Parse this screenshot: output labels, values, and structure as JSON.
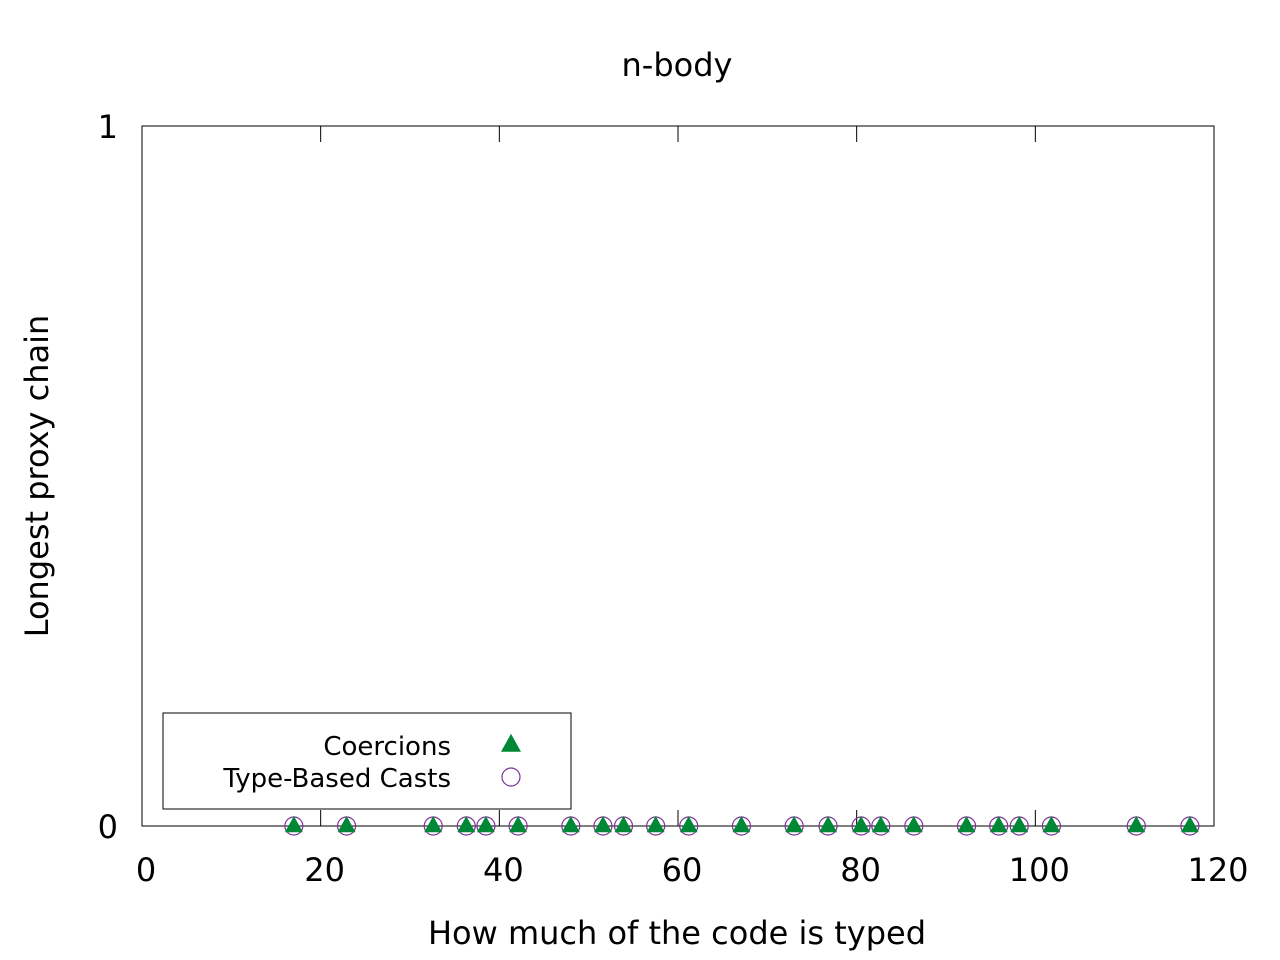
{
  "chart_data": {
    "type": "scatter",
    "title": "n-body",
    "xlabel": "How much of the code is typed",
    "ylabel": "Longest proxy chain",
    "xlim": [
      0,
      120
    ],
    "ylim": [
      0,
      1
    ],
    "x_ticks": [
      0,
      20,
      40,
      60,
      80,
      100,
      120
    ],
    "y_ticks": [
      0,
      1
    ],
    "grid": false,
    "legend_position": "bottom-left",
    "series": [
      {
        "name": "Coercions",
        "marker": "filled-triangle",
        "color": "#008837",
        "x": [
          17.0,
          22.9,
          32.6,
          36.3,
          38.5,
          42.1,
          48.0,
          51.6,
          53.9,
          57.5,
          61.2,
          67.1,
          73.0,
          76.8,
          80.5,
          82.7,
          86.4,
          92.3,
          95.9,
          98.2,
          101.8,
          111.3,
          117.3
        ],
        "y": [
          0,
          0,
          0,
          0,
          0,
          0,
          0,
          0,
          0,
          0,
          0,
          0,
          0,
          0,
          0,
          0,
          0,
          0,
          0,
          0,
          0,
          0,
          0
        ]
      },
      {
        "name": "Type-Based Casts",
        "marker": "open-circle",
        "color": "#7b3294",
        "x": [
          17.0,
          22.9,
          32.6,
          36.3,
          38.5,
          42.1,
          48.0,
          51.6,
          53.9,
          57.5,
          61.2,
          67.1,
          73.0,
          76.8,
          80.5,
          82.7,
          86.4,
          92.3,
          95.9,
          98.2,
          101.8,
          111.3,
          117.3
        ],
        "y": [
          0,
          0,
          0,
          0,
          0,
          0,
          0,
          0,
          0,
          0,
          0,
          0,
          0,
          0,
          0,
          0,
          0,
          0,
          0,
          0,
          0,
          0,
          0
        ]
      }
    ]
  }
}
